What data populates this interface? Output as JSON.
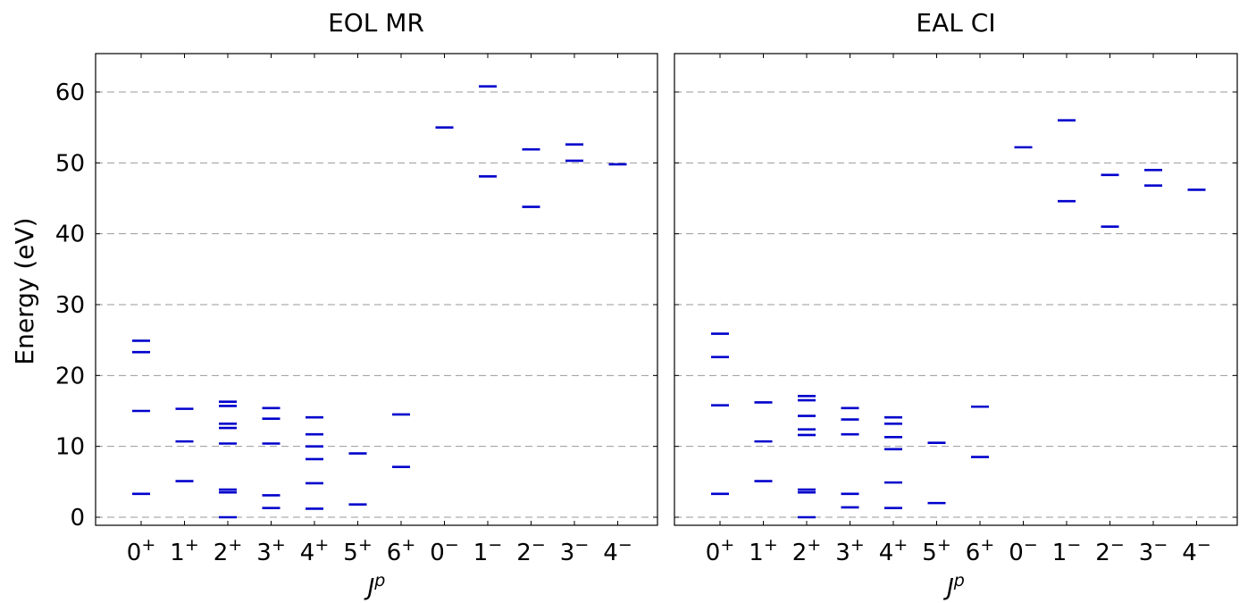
{
  "y_axis_label": "Energy (eV)",
  "chart_data": [
    {
      "type": "scatter",
      "title": "EOL MR",
      "xlabel": "J",
      "xlabel_sup": "p",
      "ylabel": "Energy (eV)",
      "ylim": [
        -1,
        65
      ],
      "yticks": [
        0,
        10,
        20,
        30,
        40,
        50,
        60
      ],
      "grid": "horizontal dashed",
      "marker_color": "#0000cc",
      "categories": [
        {
          "label": "0",
          "sup": "+"
        },
        {
          "label": "1",
          "sup": "+"
        },
        {
          "label": "2",
          "sup": "+"
        },
        {
          "label": "3",
          "sup": "+"
        },
        {
          "label": "4",
          "sup": "+"
        },
        {
          "label": "5",
          "sup": "+"
        },
        {
          "label": "6",
          "sup": "+"
        },
        {
          "label": "0",
          "sup": "−"
        },
        {
          "label": "1",
          "sup": "−"
        },
        {
          "label": "2",
          "sup": "−"
        },
        {
          "label": "3",
          "sup": "−"
        },
        {
          "label": "4",
          "sup": "−"
        }
      ],
      "levels": [
        [
          3.3,
          15.0,
          23.3,
          24.9
        ],
        [
          5.1,
          10.7,
          15.3
        ],
        [
          0.0,
          3.5,
          3.9,
          10.4,
          12.6,
          13.2,
          15.7,
          16.3
        ],
        [
          1.3,
          3.1,
          10.4,
          13.9,
          15.4
        ],
        [
          1.2,
          4.8,
          8.2,
          10.0,
          11.7,
          14.1
        ],
        [
          1.8,
          9.0
        ],
        [
          7.1,
          14.5
        ],
        [
          55.0
        ],
        [
          48.1,
          60.8
        ],
        [
          43.8,
          51.9
        ],
        [
          50.3,
          52.6
        ],
        [
          49.8
        ]
      ]
    },
    {
      "type": "scatter",
      "title": "EAL CI",
      "xlabel": "J",
      "xlabel_sup": "p",
      "ylim": [
        -1,
        65
      ],
      "yticks": [
        0,
        10,
        20,
        30,
        40,
        50,
        60
      ],
      "grid": "horizontal dashed",
      "marker_color": "#0000cc",
      "categories": [
        {
          "label": "0",
          "sup": "+"
        },
        {
          "label": "1",
          "sup": "+"
        },
        {
          "label": "2",
          "sup": "+"
        },
        {
          "label": "3",
          "sup": "+"
        },
        {
          "label": "4",
          "sup": "+"
        },
        {
          "label": "5",
          "sup": "+"
        },
        {
          "label": "6",
          "sup": "+"
        },
        {
          "label": "0",
          "sup": "−"
        },
        {
          "label": "1",
          "sup": "−"
        },
        {
          "label": "2",
          "sup": "−"
        },
        {
          "label": "3",
          "sup": "−"
        },
        {
          "label": "4",
          "sup": "−"
        }
      ],
      "levels": [
        [
          3.3,
          15.8,
          22.6,
          25.9
        ],
        [
          5.1,
          10.7,
          16.2
        ],
        [
          0.0,
          3.5,
          3.9,
          11.6,
          12.4,
          14.3,
          16.5,
          17.1
        ],
        [
          1.4,
          3.3,
          11.7,
          13.8,
          15.4
        ],
        [
          1.3,
          4.9,
          9.6,
          11.3,
          13.2,
          14.1
        ],
        [
          2.0,
          10.5
        ],
        [
          8.5,
          15.6
        ],
        [
          52.2
        ],
        [
          44.6,
          56.0
        ],
        [
          41.0,
          48.3
        ],
        [
          46.8,
          49.0
        ],
        [
          46.2
        ]
      ]
    }
  ]
}
